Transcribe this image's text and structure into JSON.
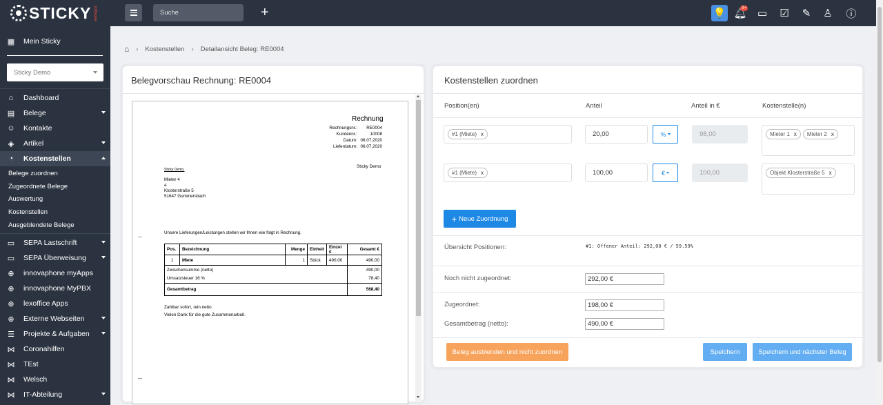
{
  "app": {
    "logo": "STICKY",
    "logo_sub": "software"
  },
  "sidebar": {
    "mein_sticky": "Mein Sticky",
    "tenant": "Sticky Demo",
    "items": [
      {
        "label": "Dashboard",
        "icon": "dashboard-icon"
      },
      {
        "label": "Belege",
        "icon": "document-icon"
      },
      {
        "label": "Kontakte",
        "icon": "contacts-icon"
      },
      {
        "label": "Artikel",
        "icon": "box-icon"
      },
      {
        "label": "Kostenstellen",
        "icon": "pie-chart-icon"
      },
      {
        "label": "SEPA Lastschrift",
        "icon": "card-icon"
      },
      {
        "label": "SEPA Überweisung",
        "icon": "card-icon"
      },
      {
        "label": "innovaphone myApps",
        "icon": "globe-icon"
      },
      {
        "label": "innovaphone MyPBX",
        "icon": "globe-icon"
      },
      {
        "label": "lexoffice Apps",
        "icon": "globe-icon"
      },
      {
        "label": "Externe Webseiten",
        "icon": "globe-icon"
      },
      {
        "label": "Projekte & Aufgaben",
        "icon": "list-icon"
      },
      {
        "label": "Coronahilfen",
        "icon": "share-icon"
      },
      {
        "label": "TEst",
        "icon": "share-icon"
      },
      {
        "label": "Welsch",
        "icon": "share-icon"
      },
      {
        "label": "IT-Abteilung",
        "icon": "share-icon"
      }
    ],
    "subitems": [
      "Belege zuordnen",
      "Zugeordnete Belege",
      "Auswertung",
      "Kostenstellen",
      "Ausgeblendete Belege"
    ]
  },
  "topbar": {
    "search_placeholder": "Suche",
    "plus": "+",
    "notif_badge": "9+"
  },
  "breadcrumb": {
    "level1": "Kostenstellen",
    "level2": "Detailansicht Beleg: RE0004"
  },
  "preview": {
    "title": "Belegvorschau Rechnung: RE0004",
    "doc": {
      "heading": "Rechnung",
      "meta": [
        {
          "k": "Rechnungsnr.:",
          "v": "RE0004"
        },
        {
          "k": "Kundennr.:",
          "v": "10008"
        },
        {
          "k": "Datum:",
          "v": "06.07.2020"
        },
        {
          "k": "Lieferdatum:",
          "v": "06.07.2020"
        }
      ],
      "sender_right": "Sticky Demo",
      "sender_small": "Sticky Demo, ",
      "address": [
        "Mieter 4",
        "a",
        "Klosterstraße 5",
        "51647 Gummersbach"
      ],
      "intro": "Unsere Lieferungen/Leistungen stellen wir Ihnen wie folgt in Rechnung.",
      "table_head": [
        "Pos.",
        "Bezeichnung",
        "Menge",
        "Einheit",
        "Einzel €",
        "Gesamt €"
      ],
      "table_row": [
        "1",
        "Miete",
        "1",
        "Stück",
        "490,00",
        "490,00"
      ],
      "subtotal_label": "Zwischensumme (netto)",
      "subtotal": "490,00",
      "tax_label": "Umsatzsteuer 16 %",
      "tax": "78,40",
      "total_label": "Gesamtbetrag",
      "total": "568,40",
      "footer1": "Zahlbar sofort, rein netto",
      "footer2": "Vielen Dank für die gute Zusammenarbeit."
    }
  },
  "assign": {
    "title": "Kostenstellen zuordnen",
    "headers": [
      "Position(en)",
      "Anteil",
      "Anteil in €",
      "Kostenstelle(n)"
    ],
    "rows": [
      {
        "position": "#1 (Miete)",
        "anteil": "20,00",
        "unit": "%",
        "euro": "98,00",
        "tags": [
          "Mieter 1",
          "Mieter 2"
        ]
      },
      {
        "position": "#1 (Miete)",
        "anteil": "100,00",
        "unit": "€",
        "euro": "100,00",
        "tags": [
          "Objekt Klosterstraße 5"
        ]
      }
    ],
    "tag_close": "x",
    "new_button": "Neue Zuordnung",
    "overview_label": "Übersicht Positionen:",
    "overview_value": "#1: Offener Anteil: 292,00 € / 59.59%",
    "not_assigned_label": "Noch nicht zugeordnet:",
    "not_assigned_value": "292,00 €",
    "assigned_label": "Zugeordnet:",
    "assigned_value": "198,00 €",
    "total_label": "Gesamtbetrag (netto):",
    "total_value": "490,00 €",
    "btn_hide": "Beleg ausblenden und nicht zuordnen",
    "btn_save": "Speichern",
    "btn_save_next": "Speichern und nächster Beleg"
  },
  "colors": {
    "sidebar": "#2b3340",
    "primary": "#1e88e5",
    "save": "#63aef2",
    "warning": "#f7a35c"
  }
}
